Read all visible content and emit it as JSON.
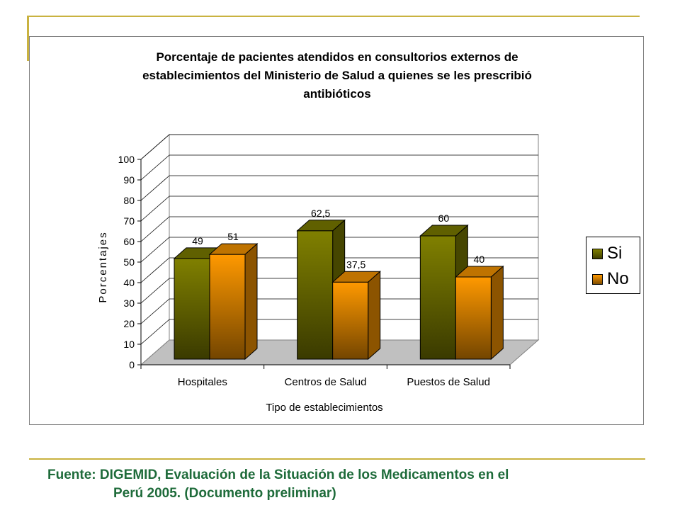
{
  "chart_data": {
    "type": "bar",
    "title_lines": [
      "Porcentaje de pacientes atendidos en consultorios externos de",
      "establecimientos del Ministerio de Salud a quienes se les prescribió",
      "antibióticos"
    ],
    "xlabel": "Tipo de establecimientos",
    "ylabel": "Porcentajes",
    "categories": [
      "Hospitales",
      "Centros de Salud",
      "Puestos de Salud"
    ],
    "series": [
      {
        "name": "Si",
        "values": [
          49,
          62.5,
          60
        ],
        "labels": [
          "49",
          "62,5",
          "60"
        ],
        "color": "#808000"
      },
      {
        "name": "No",
        "values": [
          51,
          37.5,
          40
        ],
        "labels": [
          "51",
          "37,5",
          "40"
        ],
        "color": "#ff9900"
      }
    ],
    "ylim": [
      0,
      100
    ],
    "yticks": [
      "0",
      "10",
      "20",
      "30",
      "40",
      "50",
      "60",
      "70",
      "80",
      "90",
      "100"
    ],
    "grid": true,
    "legend_position": "right",
    "style": "3d-clustered"
  },
  "footer": {
    "line1": "Fuente: DIGEMID, Evaluación de la Situación de los Medicamentos en el",
    "line2": "Perú 2005. (Documento preliminar)"
  }
}
